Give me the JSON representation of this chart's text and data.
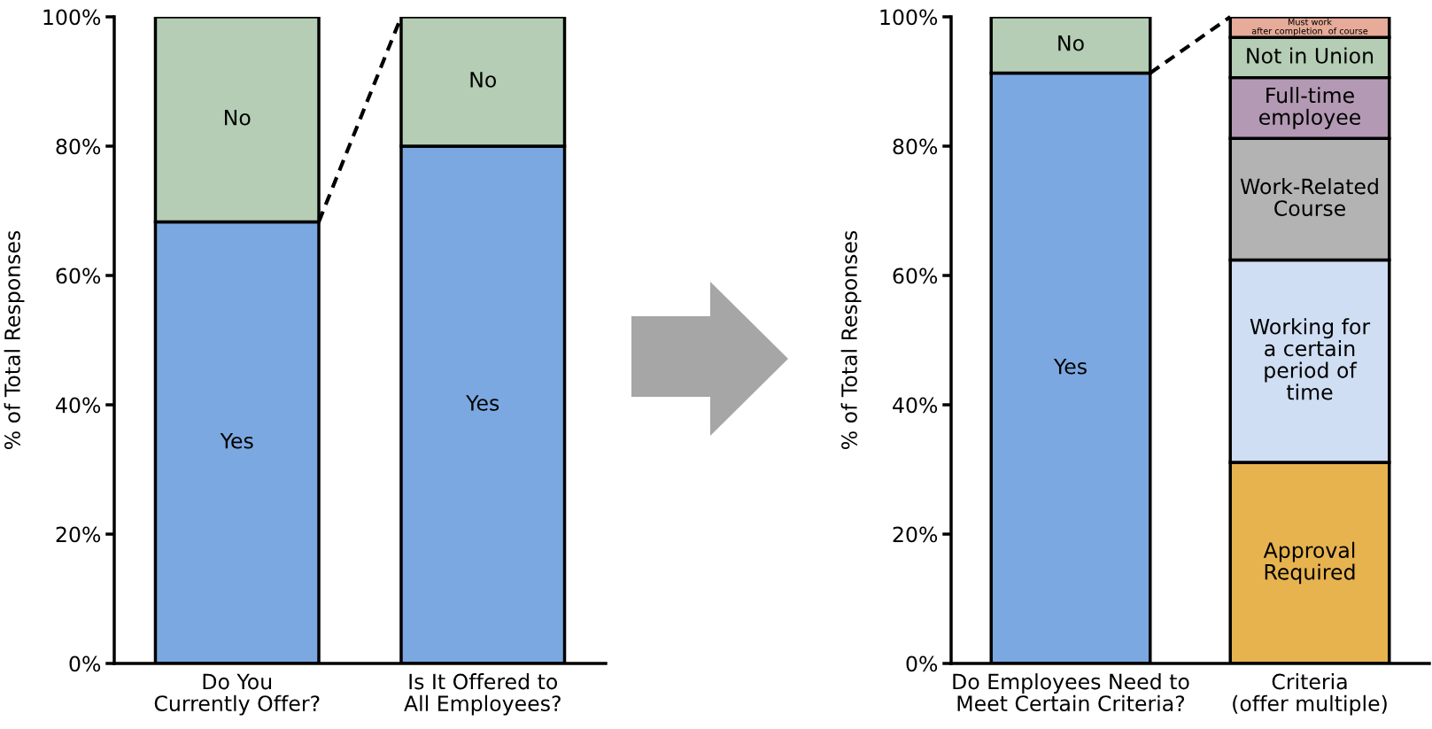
{
  "chart_data": [
    {
      "type": "bar",
      "stacked": true,
      "ylabel": "% of Total Responses",
      "categories": [
        "Do You\nCurrently Offer?",
        "Is It Offered to\nAll Employees?"
      ],
      "ylim": [
        0,
        100
      ],
      "yticks": [
        {
          "value": 0,
          "label": "0%"
        },
        {
          "value": 20,
          "label": "20%"
        },
        {
          "value": 40,
          "label": "40%"
        },
        {
          "value": 60,
          "label": "60%"
        },
        {
          "value": 80,
          "label": "80%"
        },
        {
          "value": 100,
          "label": "100%"
        }
      ],
      "grid": false,
      "legend": false,
      "series": [
        {
          "name": "Yes",
          "color": "#7ba8e0",
          "values": [
            68.3,
            80
          ]
        },
        {
          "name": "No",
          "color": "#b4cdb4",
          "values": [
            31.7,
            20
          ]
        }
      ]
    },
    {
      "type": "bar",
      "stacked": true,
      "ylabel": "% of Total Responses",
      "categories": [
        "Do Employees Need to\nMeet Certain Criteria?",
        "Criteria\n(offer multiple)"
      ],
      "ylim": [
        0,
        100
      ],
      "yticks": [
        {
          "value": 0,
          "label": "0%"
        },
        {
          "value": 20,
          "label": "20%"
        },
        {
          "value": 40,
          "label": "40%"
        },
        {
          "value": 60,
          "label": "60%"
        },
        {
          "value": 80,
          "label": "80%"
        },
        {
          "value": 100,
          "label": "100%"
        }
      ],
      "grid": false,
      "legend": false,
      "series": [
        {
          "name": "Yes",
          "color": "#7ba8e0",
          "values": [
            91.3,
            null
          ]
        },
        {
          "name": "No",
          "color": "#b4cdb4",
          "values": [
            8.7,
            null
          ]
        },
        {
          "name": "Approval\nRequired",
          "color": "#e6b34f",
          "values": [
            null,
            31.1
          ]
        },
        {
          "name": "Working for\na certain\nperiod of\ntime",
          "color": "#cfdef3",
          "values": [
            null,
            31.3
          ]
        },
        {
          "name": "Work-Related\nCourse",
          "color": "#b3b3b3",
          "values": [
            null,
            18.8
          ]
        },
        {
          "name": "Full-time\nemployee",
          "color": "#b399b3",
          "values": [
            null,
            9.4
          ]
        },
        {
          "name": "Not in Union",
          "color": "#b4cdb4",
          "values": [
            null,
            6.2
          ]
        },
        {
          "name": "Must work\nafter completion  of course",
          "color": "#e6ab99",
          "values": [
            null,
            3.2
          ]
        }
      ]
    }
  ]
}
